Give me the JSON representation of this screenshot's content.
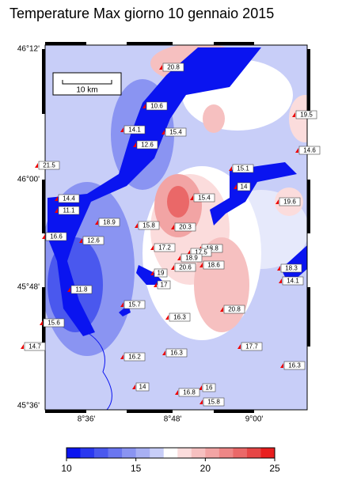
{
  "title": "Temperature Max giorno 10 gennaio 2015",
  "lat_labels": [
    "46°12'",
    "46°00'",
    "45°48'",
    "45°36'"
  ],
  "lon_labels": [
    "8°36'",
    "8°48'",
    "9°00'"
  ],
  "scale_label": "10 km",
  "stations": [
    20.8,
    10.6,
    14.1,
    12.6,
    15.4,
    19.5,
    14.6,
    21.5,
    15.1,
    14,
    15.4,
    19.6,
    14.4,
    11.1,
    18.9,
    15.8,
    20.3,
    16.6,
    12.6,
    17.2,
    18.8,
    17.5,
    18.9,
    20.6,
    18.6,
    19,
    18.3,
    14.1,
    17,
    11.8,
    15.7,
    20.8,
    16.3,
    15.6,
    14.7,
    17.7,
    16.3,
    16.2,
    16.3,
    14,
    16,
    16.8,
    15.8
  ],
  "colorbar": {
    "lim": [
      10,
      25
    ],
    "ticks": [
      10,
      15,
      20,
      25
    ],
    "colors": [
      "#0a14f0",
      "#2a38f0",
      "#4a58ee",
      "#6a76f0",
      "#8a94f2",
      "#a8b0f4",
      "#c8ceF8",
      "#ffffff",
      "#fbdcdc",
      "#f6c0c0",
      "#f2a4a4",
      "#ee8686",
      "#ea6868",
      "#e64646",
      "#e81e1e"
    ]
  }
}
